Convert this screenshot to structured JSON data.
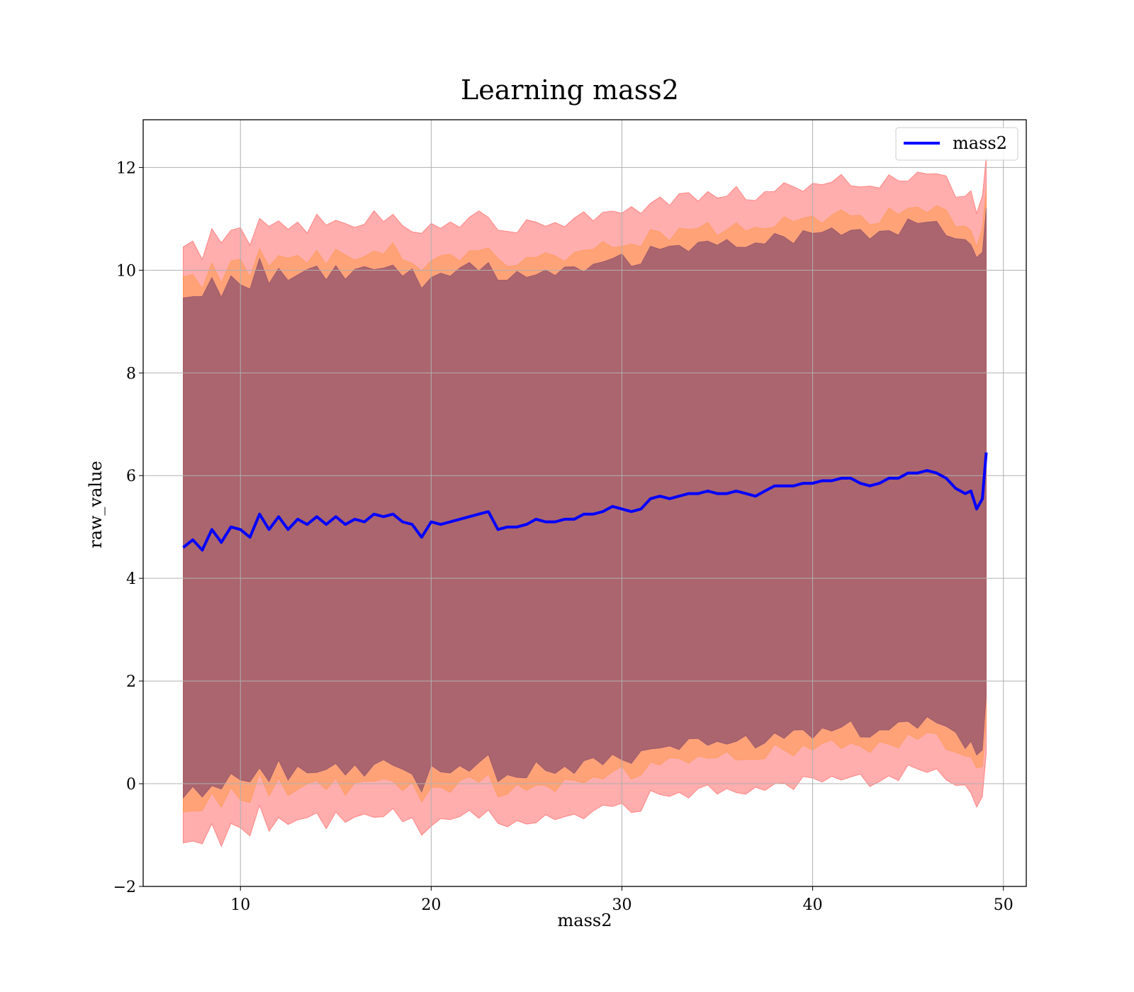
{
  "chart_data": {
    "type": "line",
    "title": "Learning mass2",
    "xlabel": "mass2",
    "ylabel": "raw_value",
    "xlim": [
      4.9,
      51.2
    ],
    "ylim": [
      -2.0,
      12.93
    ],
    "xticks": [
      10,
      20,
      30,
      40,
      50
    ],
    "xtick_labels": [
      "10",
      "20",
      "30",
      "40",
      "50"
    ],
    "yticks": [
      -2,
      0,
      2,
      4,
      6,
      8,
      10,
      12
    ],
    "ytick_labels": [
      "−2",
      "0",
      "2",
      "4",
      "6",
      "8",
      "10",
      "12"
    ],
    "grid": true,
    "legend_position": "top-right",
    "colors": {
      "line": "#0000ff",
      "band_outer": "#ff0000",
      "band_middle": "#ff8c00",
      "band_inner": "#663366",
      "grid": "#b0b0b0"
    },
    "series": [
      {
        "name": "mass2",
        "x": [
          7.0,
          7.5,
          8.0,
          8.5,
          9.0,
          9.5,
          10.0,
          10.5,
          11.0,
          11.5,
          12.0,
          12.5,
          13.0,
          13.5,
          14.0,
          14.5,
          15.0,
          15.5,
          16.0,
          16.5,
          17.0,
          17.5,
          18.0,
          18.5,
          19.0,
          19.5,
          20.0,
          20.5,
          21.0,
          21.5,
          22.0,
          22.5,
          23.0,
          23.5,
          24.0,
          24.5,
          25.0,
          25.5,
          26.0,
          26.5,
          27.0,
          27.5,
          28.0,
          28.5,
          29.0,
          29.5,
          30.0,
          30.5,
          31.0,
          31.5,
          32.0,
          32.5,
          33.0,
          33.5,
          34.0,
          34.5,
          35.0,
          35.5,
          36.0,
          36.5,
          37.0,
          37.5,
          38.0,
          38.5,
          39.0,
          39.5,
          40.0,
          40.5,
          41.0,
          41.5,
          42.0,
          42.5,
          43.0,
          43.5,
          44.0,
          44.5,
          45.0,
          45.5,
          46.0,
          46.5,
          47.0,
          47.5,
          48.0,
          48.3,
          48.6,
          48.9,
          49.1
        ],
        "y": [
          4.6,
          4.75,
          4.55,
          4.95,
          4.7,
          5.0,
          4.95,
          4.8,
          5.25,
          4.95,
          5.2,
          4.95,
          5.15,
          5.05,
          5.2,
          5.05,
          5.2,
          5.05,
          5.15,
          5.1,
          5.25,
          5.2,
          5.25,
          5.1,
          5.05,
          4.8,
          5.1,
          5.05,
          5.1,
          5.15,
          5.2,
          5.25,
          5.3,
          4.95,
          5.0,
          5.0,
          5.05,
          5.15,
          5.1,
          5.1,
          5.15,
          5.15,
          5.25,
          5.25,
          5.3,
          5.4,
          5.35,
          5.3,
          5.35,
          5.55,
          5.6,
          5.55,
          5.6,
          5.65,
          5.65,
          5.7,
          5.65,
          5.65,
          5.7,
          5.65,
          5.6,
          5.7,
          5.8,
          5.8,
          5.8,
          5.85,
          5.85,
          5.9,
          5.9,
          5.95,
          5.95,
          5.85,
          5.8,
          5.85,
          5.95,
          5.95,
          6.05,
          6.05,
          6.1,
          6.05,
          5.95,
          5.75,
          5.65,
          5.7,
          5.35,
          5.55,
          6.45
        ],
        "band_outer_halfwidth": 5.8,
        "band_middle_halfwidth": 5.15,
        "band_inner_halfwidth": 4.85
      }
    ]
  }
}
